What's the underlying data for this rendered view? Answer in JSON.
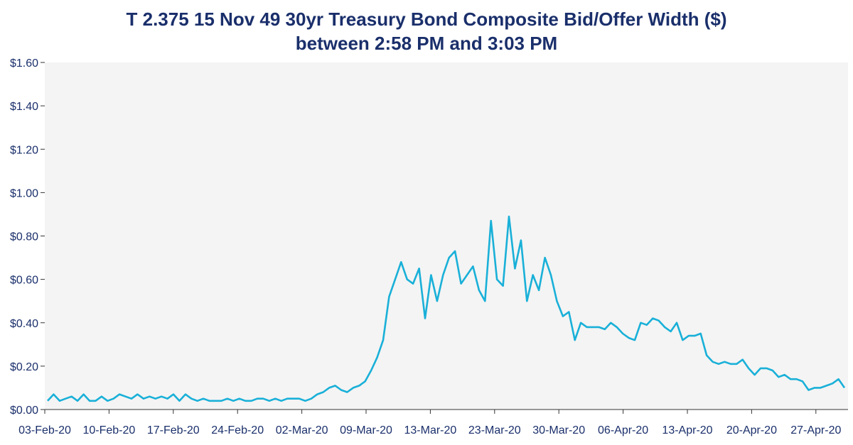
{
  "chart_data": {
    "type": "line",
    "title": "T 2.375 15 Nov 49 30yr Treasury Bond Composite Bid/Offer Width ($)",
    "subtitle": "between 2:58 PM and 3:03 PM",
    "xlabel": "",
    "ylabel": "",
    "ylim": [
      0,
      1.6
    ],
    "y_ticks": [
      0,
      0.2,
      0.4,
      0.6,
      0.8,
      1.0,
      1.2,
      1.4,
      1.6
    ],
    "y_tick_labels": [
      "$0.00",
      "$0.20",
      "$0.40",
      "$0.60",
      "$0.80",
      "$1.00",
      "$1.20",
      "$1.40",
      "$1.60"
    ],
    "x_tick_labels": [
      "03-Feb-20",
      "10-Feb-20",
      "17-Feb-20",
      "24-Feb-20",
      "02-Mar-20",
      "09-Mar-20",
      "13-Mar-20",
      "23-Mar-20",
      "30-Mar-20",
      "06-Apr-20",
      "13-Apr-20",
      "20-Apr-20",
      "27-Apr-20"
    ],
    "grid": false,
    "legend": "none",
    "color": "#19b0d8",
    "series": [
      {
        "values": [
          0.04,
          0.07,
          0.04,
          0.05,
          0.06,
          0.04,
          0.07,
          0.04,
          0.04,
          0.06,
          0.04,
          0.05,
          0.07,
          0.06,
          0.05,
          0.07,
          0.05,
          0.06,
          0.05,
          0.06,
          0.05,
          0.07,
          0.04,
          0.07,
          0.05,
          0.04,
          0.05,
          0.04,
          0.04,
          0.04,
          0.05,
          0.04,
          0.05,
          0.04,
          0.04,
          0.05,
          0.05,
          0.04,
          0.05,
          0.04,
          0.05,
          0.05,
          0.05,
          0.04,
          0.05,
          0.07,
          0.08,
          0.1,
          0.11,
          0.09,
          0.08,
          0.1,
          0.11,
          0.13,
          0.18,
          0.24,
          0.32,
          0.52,
          0.6,
          0.68,
          0.6,
          0.58,
          0.65,
          0.42,
          0.62,
          0.5,
          0.62,
          0.7,
          0.73,
          0.58,
          0.62,
          0.66,
          0.55,
          0.5,
          0.87,
          0.6,
          0.57,
          0.89,
          0.65,
          0.78,
          0.5,
          0.62,
          0.55,
          0.7,
          0.62,
          0.5,
          0.43,
          0.45,
          0.32,
          0.4,
          0.38,
          0.38,
          0.38,
          0.37,
          0.4,
          0.38,
          0.35,
          0.33,
          0.32,
          0.4,
          0.39,
          0.42,
          0.41,
          0.38,
          0.36,
          0.4,
          0.32,
          0.34,
          0.34,
          0.35,
          0.25,
          0.22,
          0.21,
          0.22,
          0.21,
          0.21,
          0.23,
          0.19,
          0.16,
          0.19,
          0.19,
          0.18,
          0.15,
          0.16,
          0.14,
          0.14,
          0.13,
          0.09,
          0.1,
          0.1,
          0.11,
          0.12,
          0.14,
          0.1
        ]
      }
    ]
  }
}
